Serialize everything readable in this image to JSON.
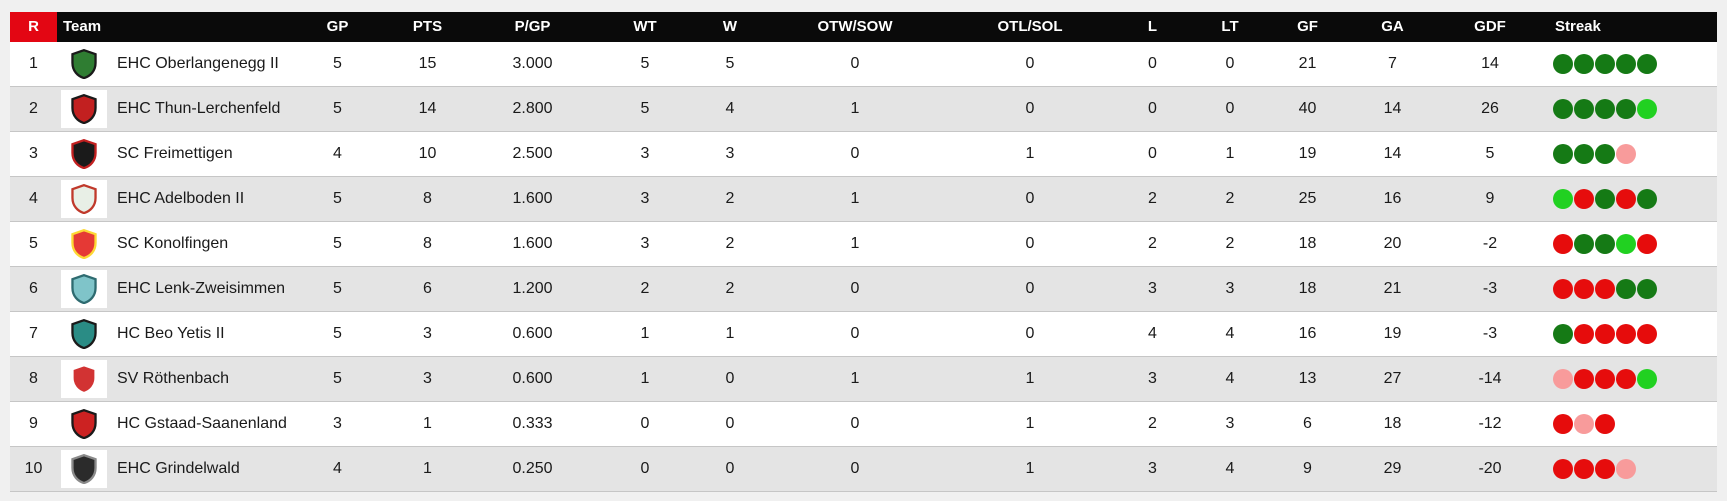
{
  "page": {
    "background_color": "#f0f0f0",
    "header_bg_color": "#0a0a0a",
    "rank_header_bg_color": "#e30613",
    "stripe_color": "#e4e4e4"
  },
  "table": {
    "columns": [
      {
        "key": "rank",
        "label": "R"
      },
      {
        "key": "team",
        "label": "Team"
      },
      {
        "key": "gp",
        "label": "GP"
      },
      {
        "key": "pts",
        "label": "PTS"
      },
      {
        "key": "pgp",
        "label": "P/GP"
      },
      {
        "key": "wt",
        "label": "WT"
      },
      {
        "key": "w",
        "label": "W"
      },
      {
        "key": "otw",
        "label": "OTW/SOW"
      },
      {
        "key": "otl",
        "label": "OTL/SOL"
      },
      {
        "key": "l",
        "label": "L"
      },
      {
        "key": "lt",
        "label": "LT"
      },
      {
        "key": "gf",
        "label": "GF"
      },
      {
        "key": "ga",
        "label": "GA"
      },
      {
        "key": "gdf",
        "label": "GDF"
      },
      {
        "key": "streak",
        "label": "Streak"
      }
    ],
    "streak_colors": {
      "win": "#157a15",
      "ot_win": "#21d121",
      "loss": "#e60c0c",
      "ot_loss": "#f89b9b"
    },
    "rows": [
      {
        "rank": "1",
        "team": "EHC Oberlangenegg II",
        "gp": "5",
        "pts": "15",
        "pgp": "3.000",
        "wt": "5",
        "w": "5",
        "otw": "0",
        "otl": "0",
        "l": "0",
        "lt": "0",
        "gf": "21",
        "ga": "7",
        "gdf": "14",
        "streak": [
          "win",
          "win",
          "win",
          "win",
          "win"
        ],
        "logo": {
          "primary": "#2f7d32",
          "secondary": "#1a1a1a"
        }
      },
      {
        "rank": "2",
        "team": "EHC Thun-Lerchenfeld",
        "gp": "5",
        "pts": "14",
        "pgp": "2.800",
        "wt": "5",
        "w": "4",
        "otw": "1",
        "otl": "0",
        "l": "0",
        "lt": "0",
        "gf": "40",
        "ga": "14",
        "gdf": "26",
        "streak": [
          "win",
          "win",
          "win",
          "win",
          "ot_win"
        ],
        "logo": {
          "primary": "#c22020",
          "secondary": "#1a1a1a"
        }
      },
      {
        "rank": "3",
        "team": "SC Freimettigen",
        "gp": "4",
        "pts": "10",
        "pgp": "2.500",
        "wt": "3",
        "w": "3",
        "otw": "0",
        "otl": "1",
        "l": "0",
        "lt": "1",
        "gf": "19",
        "ga": "14",
        "gdf": "5",
        "streak": [
          "win",
          "win",
          "win",
          "ot_loss"
        ],
        "logo": {
          "primary": "#1a1a1a",
          "secondary": "#c22020"
        }
      },
      {
        "rank": "4",
        "team": "EHC Adelboden II",
        "gp": "5",
        "pts": "8",
        "pgp": "1.600",
        "wt": "3",
        "w": "2",
        "otw": "1",
        "otl": "0",
        "l": "2",
        "lt": "2",
        "gf": "25",
        "ga": "16",
        "gdf": "9",
        "streak": [
          "ot_win",
          "loss",
          "win",
          "loss",
          "win"
        ],
        "logo": {
          "primary": "#e8efe6",
          "secondary": "#c0392b"
        }
      },
      {
        "rank": "5",
        "team": "SC Konolfingen",
        "gp": "5",
        "pts": "8",
        "pgp": "1.600",
        "wt": "3",
        "w": "2",
        "otw": "1",
        "otl": "0",
        "l": "2",
        "lt": "2",
        "gf": "18",
        "ga": "20",
        "gdf": "-2",
        "streak": [
          "loss",
          "win",
          "win",
          "ot_win",
          "loss"
        ],
        "logo": {
          "primary": "#e53935",
          "secondary": "#fdd835"
        }
      },
      {
        "rank": "6",
        "team": "EHC Lenk-Zweisimmen",
        "gp": "5",
        "pts": "6",
        "pgp": "1.200",
        "wt": "2",
        "w": "2",
        "otw": "0",
        "otl": "0",
        "l": "3",
        "lt": "3",
        "gf": "18",
        "ga": "21",
        "gdf": "-3",
        "streak": [
          "loss",
          "loss",
          "loss",
          "win",
          "win"
        ],
        "logo": {
          "primary": "#7fc4c9",
          "secondary": "#2e6b70"
        }
      },
      {
        "rank": "7",
        "team": "HC Beo Yetis II",
        "gp": "5",
        "pts": "3",
        "pgp": "0.600",
        "wt": "1",
        "w": "1",
        "otw": "0",
        "otl": "0",
        "l": "4",
        "lt": "4",
        "gf": "16",
        "ga": "19",
        "gdf": "-3",
        "streak": [
          "win",
          "loss",
          "loss",
          "loss",
          "loss"
        ],
        "logo": {
          "primary": "#2a8c85",
          "secondary": "#1a1a1a"
        }
      },
      {
        "rank": "8",
        "team": "SV Röthenbach",
        "gp": "5",
        "pts": "3",
        "pgp": "0.600",
        "wt": "1",
        "w": "0",
        "otw": "1",
        "otl": "1",
        "l": "3",
        "lt": "4",
        "gf": "13",
        "ga": "27",
        "gdf": "-14",
        "streak": [
          "ot_loss",
          "loss",
          "loss",
          "loss",
          "ot_win"
        ],
        "logo": {
          "primary": "#d23333",
          "secondary": "#ffffff"
        }
      },
      {
        "rank": "9",
        "team": "HC Gstaad-Saanenland",
        "gp": "3",
        "pts": "1",
        "pgp": "0.333",
        "wt": "0",
        "w": "0",
        "otw": "0",
        "otl": "1",
        "l": "2",
        "lt": "3",
        "gf": "6",
        "ga": "18",
        "gdf": "-12",
        "streak": [
          "loss",
          "ot_loss",
          "loss"
        ],
        "logo": {
          "primary": "#cc2222",
          "secondary": "#1a1a1a"
        }
      },
      {
        "rank": "10",
        "team": "EHC Grindelwald",
        "gp": "4",
        "pts": "1",
        "pgp": "0.250",
        "wt": "0",
        "w": "0",
        "otw": "0",
        "otl": "1",
        "l": "3",
        "lt": "4",
        "gf": "9",
        "ga": "29",
        "gdf": "-20",
        "streak": [
          "loss",
          "loss",
          "loss",
          "ot_loss"
        ],
        "logo": {
          "primary": "#2b2b2b",
          "secondary": "#8a8a8a"
        }
      }
    ]
  }
}
